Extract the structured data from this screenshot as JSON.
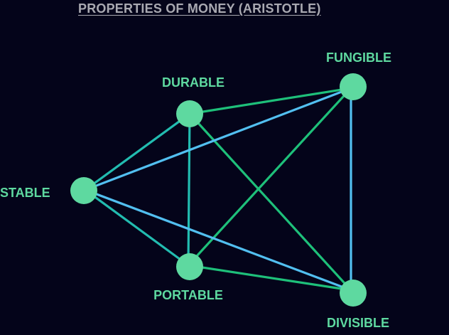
{
  "title": "PROPERTIES OF MONEY (ARISTOTLE)",
  "colors": {
    "background": "#04041a",
    "title": "#a9a9b1",
    "node": "#5ed9a0",
    "label": "#5ed9a0",
    "edge_teal": "#22bcb0",
    "edge_green": "#1ec07a",
    "edge_blue": "#52bff0"
  },
  "nodes": [
    {
      "id": "durable",
      "label": "DURABLE"
    },
    {
      "id": "fungible",
      "label": "FUNGIBLE"
    },
    {
      "id": "stable",
      "label": "STABLE"
    },
    {
      "id": "portable",
      "label": "PORTABLE"
    },
    {
      "id": "divisible",
      "label": "DIVISIBLE"
    }
  ],
  "edges": [
    {
      "from": "stable",
      "to": "durable",
      "color": "edge_teal"
    },
    {
      "from": "stable",
      "to": "portable",
      "color": "edge_teal"
    },
    {
      "from": "durable",
      "to": "portable",
      "color": "edge_teal"
    },
    {
      "from": "durable",
      "to": "fungible",
      "color": "edge_green"
    },
    {
      "from": "durable",
      "to": "divisible",
      "color": "edge_green"
    },
    {
      "from": "portable",
      "to": "fungible",
      "color": "edge_green"
    },
    {
      "from": "portable",
      "to": "divisible",
      "color": "edge_green"
    },
    {
      "from": "stable",
      "to": "fungible",
      "color": "edge_blue"
    },
    {
      "from": "stable",
      "to": "divisible",
      "color": "edge_blue"
    },
    {
      "from": "fungible",
      "to": "divisible",
      "color": "edge_blue"
    }
  ]
}
